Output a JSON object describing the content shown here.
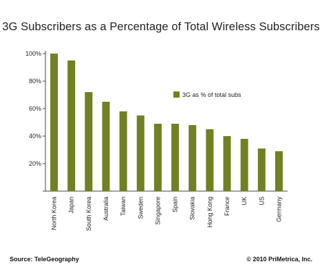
{
  "chart_data": {
    "type": "bar",
    "title": "3G Subscribers as a Percentage of Total Wireless Subscribers",
    "categories": [
      "North Korea",
      "Japan",
      "South Korea",
      "Australia",
      "Taiwan",
      "Sweden",
      "Singapore",
      "Spain",
      "Slovakia",
      "Hong Kong",
      "France",
      "UK",
      "US",
      "Germany"
    ],
    "series": [
      {
        "name": "3G as % of total subs",
        "color": "#708022",
        "values": [
          100,
          95,
          72,
          65,
          58,
          55,
          49,
          49,
          48,
          45,
          40,
          38,
          31,
          29
        ]
      }
    ],
    "ylim": [
      0,
      100
    ],
    "yticks": [
      0,
      20,
      40,
      60,
      80,
      100
    ],
    "ytick_labels": [
      "",
      "20%",
      "40%",
      "60%",
      "80%",
      "100%"
    ],
    "xlabel": "",
    "ylabel": "",
    "grid": false,
    "legend_position": "right"
  },
  "footer": {
    "source": "Source: TeleGeography",
    "copyright": "© 2010 PriMetrica, Inc."
  }
}
